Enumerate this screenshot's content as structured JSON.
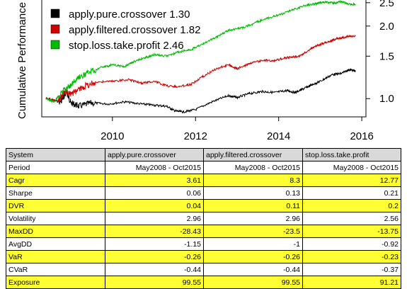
{
  "chart_data": {
    "type": "line",
    "title": "",
    "xlabel": "",
    "ylabel": "Cumulative Performance",
    "x_range": [
      2008.4,
      2015.85
    ],
    "ylim": [
      0.84,
      2.6
    ],
    "y_scale": "log",
    "grid": false,
    "legend_position": "top-left",
    "x_ticks": [
      "2010",
      "2012",
      "2014",
      "2016"
    ],
    "y_ticks": [
      "1.0",
      "1.5",
      "2.0",
      "2.5"
    ],
    "series": [
      {
        "name": "apply.pure.crossover 1.30",
        "color": "#000000",
        "points": [
          [
            2008.4,
            1.0
          ],
          [
            2008.75,
            0.97
          ],
          [
            2008.9,
            1.06
          ],
          [
            2009.0,
            0.96
          ],
          [
            2009.2,
            0.93
          ],
          [
            2009.5,
            0.96
          ],
          [
            2009.9,
            0.95
          ],
          [
            2010.3,
            0.97
          ],
          [
            2010.7,
            0.95
          ],
          [
            2011.0,
            0.94
          ],
          [
            2011.3,
            0.93
          ],
          [
            2011.5,
            0.89
          ],
          [
            2011.7,
            0.88
          ],
          [
            2012.0,
            0.9
          ],
          [
            2012.4,
            0.97
          ],
          [
            2012.8,
            1.03
          ],
          [
            2013.0,
            1.01
          ],
          [
            2013.3,
            1.05
          ],
          [
            2013.6,
            1.07
          ],
          [
            2013.9,
            1.06
          ],
          [
            2014.2,
            1.08
          ],
          [
            2014.4,
            1.06
          ],
          [
            2014.6,
            1.1
          ],
          [
            2014.8,
            1.14
          ],
          [
            2015.0,
            1.18
          ],
          [
            2015.3,
            1.26
          ],
          [
            2015.5,
            1.27
          ],
          [
            2015.7,
            1.32
          ],
          [
            2015.85,
            1.3
          ]
        ]
      },
      {
        "name": "apply.filtered.crossover 1.82",
        "color": "#cc0000",
        "points": [
          [
            2008.4,
            1.0
          ],
          [
            2008.7,
            0.98
          ],
          [
            2008.85,
            1.07
          ],
          [
            2009.0,
            1.04
          ],
          [
            2009.3,
            1.12
          ],
          [
            2009.6,
            1.17
          ],
          [
            2010.0,
            1.18
          ],
          [
            2010.4,
            1.2
          ],
          [
            2010.7,
            1.16
          ],
          [
            2011.0,
            1.18
          ],
          [
            2011.3,
            1.13
          ],
          [
            2011.6,
            1.12
          ],
          [
            2011.9,
            1.15
          ],
          [
            2012.2,
            1.24
          ],
          [
            2012.5,
            1.33
          ],
          [
            2012.8,
            1.38
          ],
          [
            2013.0,
            1.33
          ],
          [
            2013.3,
            1.4
          ],
          [
            2013.6,
            1.44
          ],
          [
            2013.9,
            1.44
          ],
          [
            2014.2,
            1.48
          ],
          [
            2014.5,
            1.5
          ],
          [
            2014.8,
            1.62
          ],
          [
            2015.0,
            1.68
          ],
          [
            2015.2,
            1.72
          ],
          [
            2015.4,
            1.77
          ],
          [
            2015.6,
            1.8
          ],
          [
            2015.85,
            1.82
          ]
        ]
      },
      {
        "name": "stop.loss.take.profit 2.46",
        "color": "#00bb00",
        "points": [
          [
            2008.4,
            1.0
          ],
          [
            2008.6,
            0.97
          ],
          [
            2008.8,
            1.07
          ],
          [
            2008.95,
            1.12
          ],
          [
            2009.2,
            1.22
          ],
          [
            2009.5,
            1.3
          ],
          [
            2009.8,
            1.36
          ],
          [
            2010.0,
            1.38
          ],
          [
            2010.3,
            1.36
          ],
          [
            2010.5,
            1.42
          ],
          [
            2010.8,
            1.48
          ],
          [
            2011.0,
            1.52
          ],
          [
            2011.3,
            1.5
          ],
          [
            2011.6,
            1.56
          ],
          [
            2011.9,
            1.6
          ],
          [
            2012.2,
            1.7
          ],
          [
            2012.5,
            1.8
          ],
          [
            2012.8,
            1.92
          ],
          [
            2013.1,
            1.96
          ],
          [
            2013.4,
            2.05
          ],
          [
            2013.7,
            2.15
          ],
          [
            2014.0,
            2.22
          ],
          [
            2014.3,
            2.32
          ],
          [
            2014.6,
            2.42
          ],
          [
            2014.9,
            2.48
          ],
          [
            2015.1,
            2.52
          ],
          [
            2015.3,
            2.49
          ],
          [
            2015.5,
            2.52
          ],
          [
            2015.7,
            2.46
          ],
          [
            2015.85,
            2.46
          ]
        ]
      }
    ],
    "table": {
      "columns": [
        "System",
        "apply.pure.crossover",
        "apply.filtered.crossover",
        "stop.loss.take.profit"
      ],
      "rows": [
        {
          "label": "Period",
          "values": [
            "May2008 - Oct2015",
            "May2008 - Oct2015",
            "May2008 - Oct2015"
          ],
          "highlight": false
        },
        {
          "label": "Cagr",
          "values": [
            "3.61",
            "8.3",
            "12.77"
          ],
          "highlight": true
        },
        {
          "label": "Sharpe",
          "values": [
            "0.06",
            "0.13",
            "0.21"
          ],
          "highlight": false
        },
        {
          "label": "DVR",
          "values": [
            "0.04",
            "0.11",
            "0.2"
          ],
          "highlight": true
        },
        {
          "label": "Volatility",
          "values": [
            "2.96",
            "2.96",
            "2.56"
          ],
          "highlight": false
        },
        {
          "label": "MaxDD",
          "values": [
            "-28.43",
            "-23.5",
            "-13.75"
          ],
          "highlight": true
        },
        {
          "label": "AvgDD",
          "values": [
            "-1.15",
            "-1",
            "-0.92"
          ],
          "highlight": false
        },
        {
          "label": "VaR",
          "values": [
            "-0.26",
            "-0.26",
            "-0.23"
          ],
          "highlight": true
        },
        {
          "label": "CVaR",
          "values": [
            "-0.44",
            "-0.44",
            "-0.37"
          ],
          "highlight": false
        },
        {
          "label": "Exposure",
          "values": [
            "99.55",
            "99.55",
            "91.21"
          ],
          "highlight": true
        }
      ],
      "highlight_color": "#ffff33"
    }
  }
}
